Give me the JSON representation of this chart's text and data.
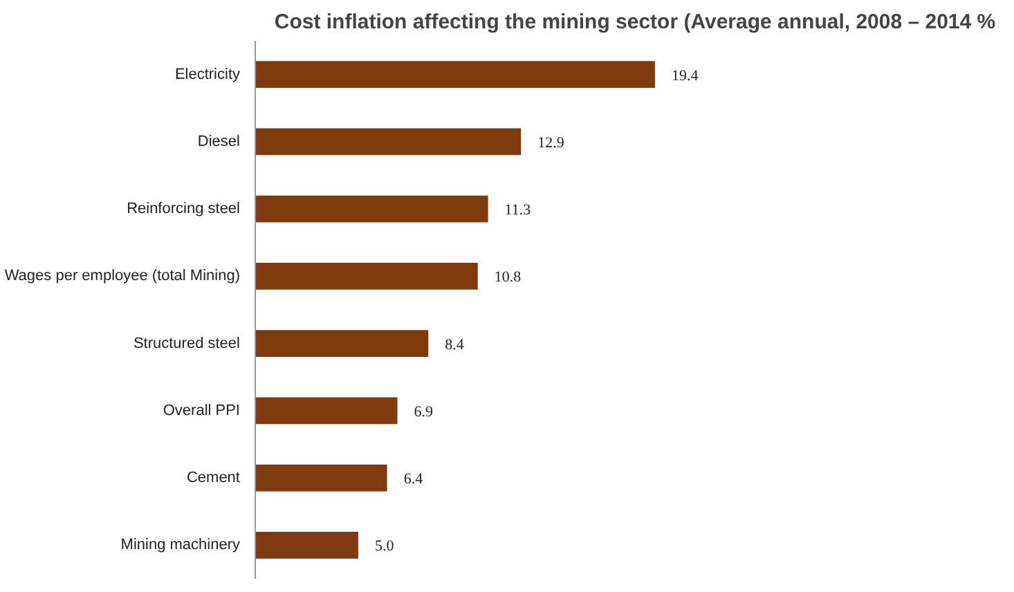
{
  "chart_data": {
    "type": "bar",
    "orientation": "horizontal",
    "title": "Cost inflation affecting the mining sector (Average annual, 2008 – 2014 %",
    "categories": [
      "Electricity",
      "Diesel",
      "Reinforcing steel",
      "Wages per employee (total Mining)",
      "Structured steel",
      "Overall PPI",
      "Cement",
      "Mining machinery"
    ],
    "values": [
      19.4,
      12.9,
      11.3,
      10.8,
      8.4,
      6.9,
      6.4,
      5.0
    ],
    "value_labels": [
      "19.4",
      "12.9",
      "11.3",
      "10.8",
      "8.4",
      "6.9",
      "6.4",
      "5.0"
    ],
    "color": "#7f3a10",
    "grid": false
  }
}
